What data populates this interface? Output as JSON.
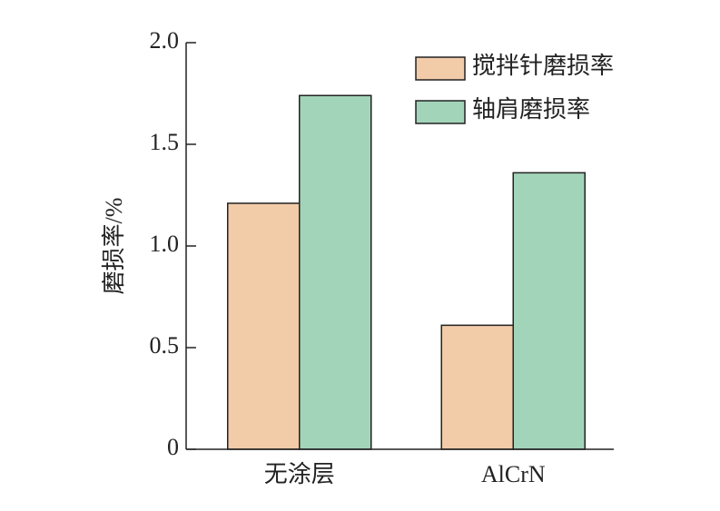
{
  "chart_data": {
    "type": "bar",
    "y_label": "磨损率/%",
    "categories": [
      "无涂层",
      "AlCrN"
    ],
    "series": [
      {
        "name": "搅拌针磨损率",
        "color": "#f2cba8",
        "values": [
          1.21,
          0.61
        ]
      },
      {
        "name": "轴肩磨损率",
        "color": "#a2d4b9",
        "values": [
          1.74,
          1.36
        ]
      }
    ],
    "ylim": [
      0,
      2.0
    ],
    "yticks": [
      0,
      0.5,
      {
        "value": 1.0,
        "label": "1.0"
      },
      1.5,
      {
        "value": 2.0,
        "label": "2.0"
      }
    ],
    "legend": "upper right"
  }
}
